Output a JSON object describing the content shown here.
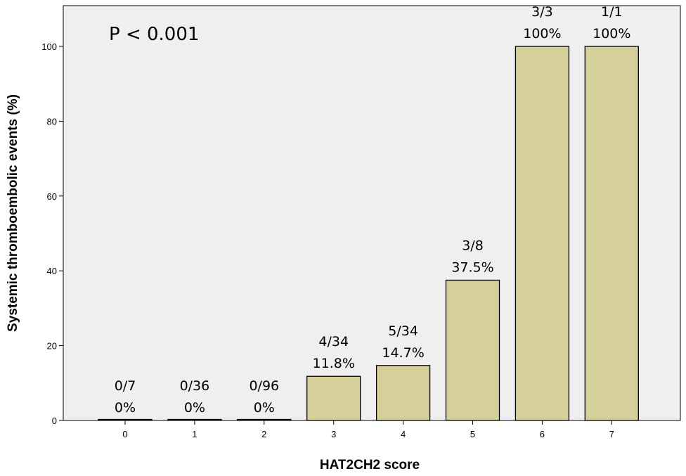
{
  "colors": {
    "bar_fill": "#d5d09a",
    "bar_stroke": "#000000",
    "plot_background": "#efefef"
  },
  "chart_data": {
    "type": "bar",
    "categories": [
      "0",
      "1",
      "2",
      "3",
      "4",
      "5",
      "6",
      "7"
    ],
    "values": [
      0,
      0,
      0,
      11.8,
      14.7,
      37.5,
      100,
      100
    ],
    "counts": [
      "0/7",
      "0/36",
      "0/96",
      "4/34",
      "5/34",
      "3/8",
      "3/3",
      "1/1"
    ],
    "percent_labels": [
      "0%",
      "0%",
      "0%",
      "11.8%",
      "14.7%",
      "37.5%",
      "100%",
      "100%"
    ],
    "xlabel": "HAT2CH2 score",
    "ylabel": "Systemic thromboembolic events (%)",
    "annotation": "P < 0.001",
    "yticks": [
      0,
      20,
      40,
      60,
      80,
      100
    ],
    "ylim": [
      0,
      110
    ],
    "grid": false,
    "legend": "none"
  }
}
